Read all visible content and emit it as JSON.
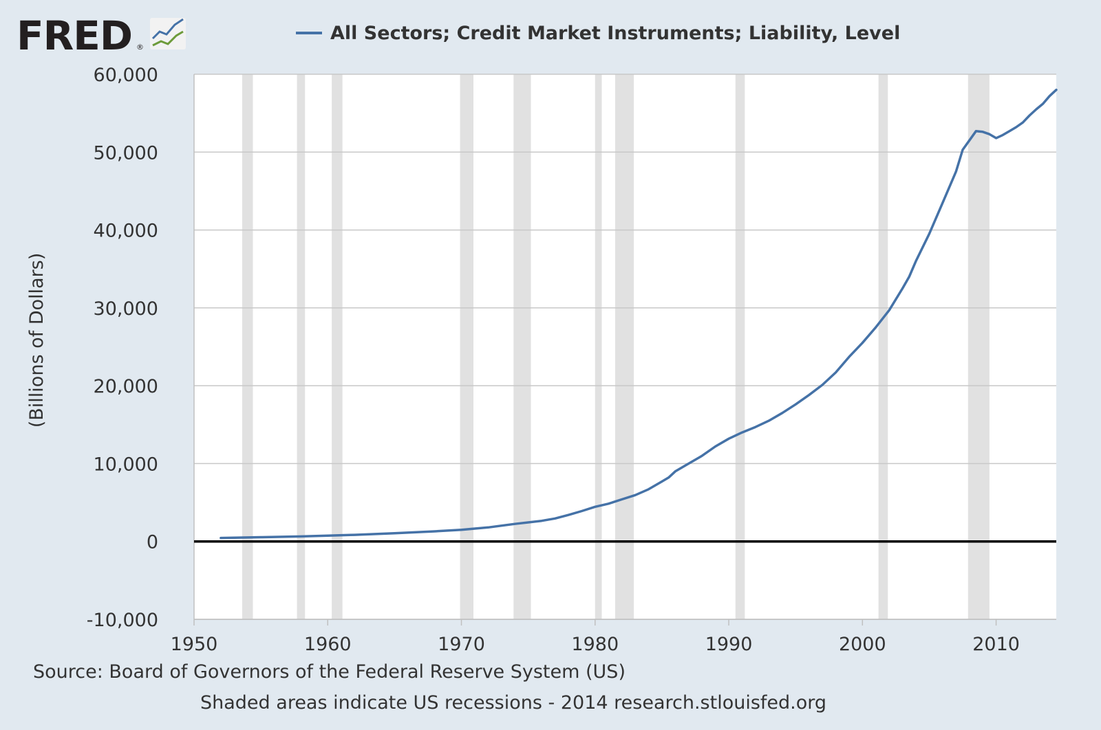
{
  "brand": {
    "logo_text": "FRED",
    "logo_mark": "®",
    "logo_icon": "line-chart-icon"
  },
  "colors": {
    "background": "#e1e9f0",
    "plot_background": "#ffffff",
    "series": "#4572a7",
    "recession": "#e1e1e1",
    "gridline": "#c8c8c8",
    "zero_line": "#000000",
    "text": "#333333"
  },
  "footer": {
    "source": "Source: Board of Governors of the Federal Reserve System (US)",
    "note": "Shaded areas indicate US recessions - 2014 research.stlouisfed.org"
  },
  "chart_data": {
    "type": "line",
    "title": "",
    "xlabel": "",
    "ylabel": "(Billions of Dollars)",
    "xlim": [
      1950,
      2014.5
    ],
    "ylim": [
      -10000,
      60000
    ],
    "grid": true,
    "legend_position": "top",
    "x_ticks": [
      1950,
      1960,
      1970,
      1980,
      1990,
      2000,
      2010
    ],
    "x_tick_labels": [
      "1950",
      "1960",
      "1970",
      "1980",
      "1990",
      "2000",
      "2010"
    ],
    "y_ticks": [
      -10000,
      0,
      10000,
      20000,
      30000,
      40000,
      50000,
      60000
    ],
    "y_tick_labels": [
      "-10,000",
      "0",
      "10,000",
      "20,000",
      "30,000",
      "40,000",
      "50,000",
      "60,000"
    ],
    "recessions": [
      [
        1953.6,
        1954.4
      ],
      [
        1957.7,
        1958.3
      ],
      [
        1960.3,
        1961.1
      ],
      [
        1969.9,
        1970.9
      ],
      [
        1973.9,
        1975.2
      ],
      [
        1980.0,
        1980.5
      ],
      [
        1981.5,
        1982.9
      ],
      [
        1990.5,
        1991.2
      ],
      [
        2001.2,
        2001.9
      ],
      [
        2007.9,
        2009.5
      ]
    ],
    "series": [
      {
        "name": "All Sectors; Credit Market Instruments; Liability, Level",
        "x": [
          1952,
          1955,
          1958,
          1960,
          1962,
          1965,
          1968,
          1970,
          1972,
          1974,
          1976,
          1977,
          1978,
          1979,
          1980,
          1981,
          1982,
          1983,
          1984,
          1985,
          1985.5,
          1986,
          1987,
          1988,
          1989,
          1990,
          1991,
          1992,
          1993,
          1994,
          1995,
          1996,
          1997,
          1998,
          1999,
          2000,
          2001,
          2002,
          2003,
          2003.5,
          2004,
          2005,
          2006,
          2007,
          2007.5,
          2008,
          2008.5,
          2009,
          2009.5,
          2010,
          2010.5,
          2011,
          2011.5,
          2012,
          2012.5,
          2013,
          2013.5,
          2014,
          2014.5
        ],
        "values": [
          450,
          550,
          650,
          750,
          850,
          1050,
          1300,
          1500,
          1800,
          2250,
          2650,
          2950,
          3400,
          3900,
          4450,
          4850,
          5400,
          5950,
          6700,
          7700,
          8200,
          9000,
          10000,
          11000,
          12200,
          13200,
          14000,
          14700,
          15500,
          16500,
          17600,
          18800,
          20100,
          21700,
          23700,
          25500,
          27500,
          29700,
          32500,
          34000,
          36000,
          39500,
          43500,
          47500,
          50300,
          51500,
          52700,
          52600,
          52300,
          51800,
          52200,
          52700,
          53200,
          53800,
          54700,
          55500,
          56200,
          57200,
          58000
        ]
      }
    ]
  }
}
